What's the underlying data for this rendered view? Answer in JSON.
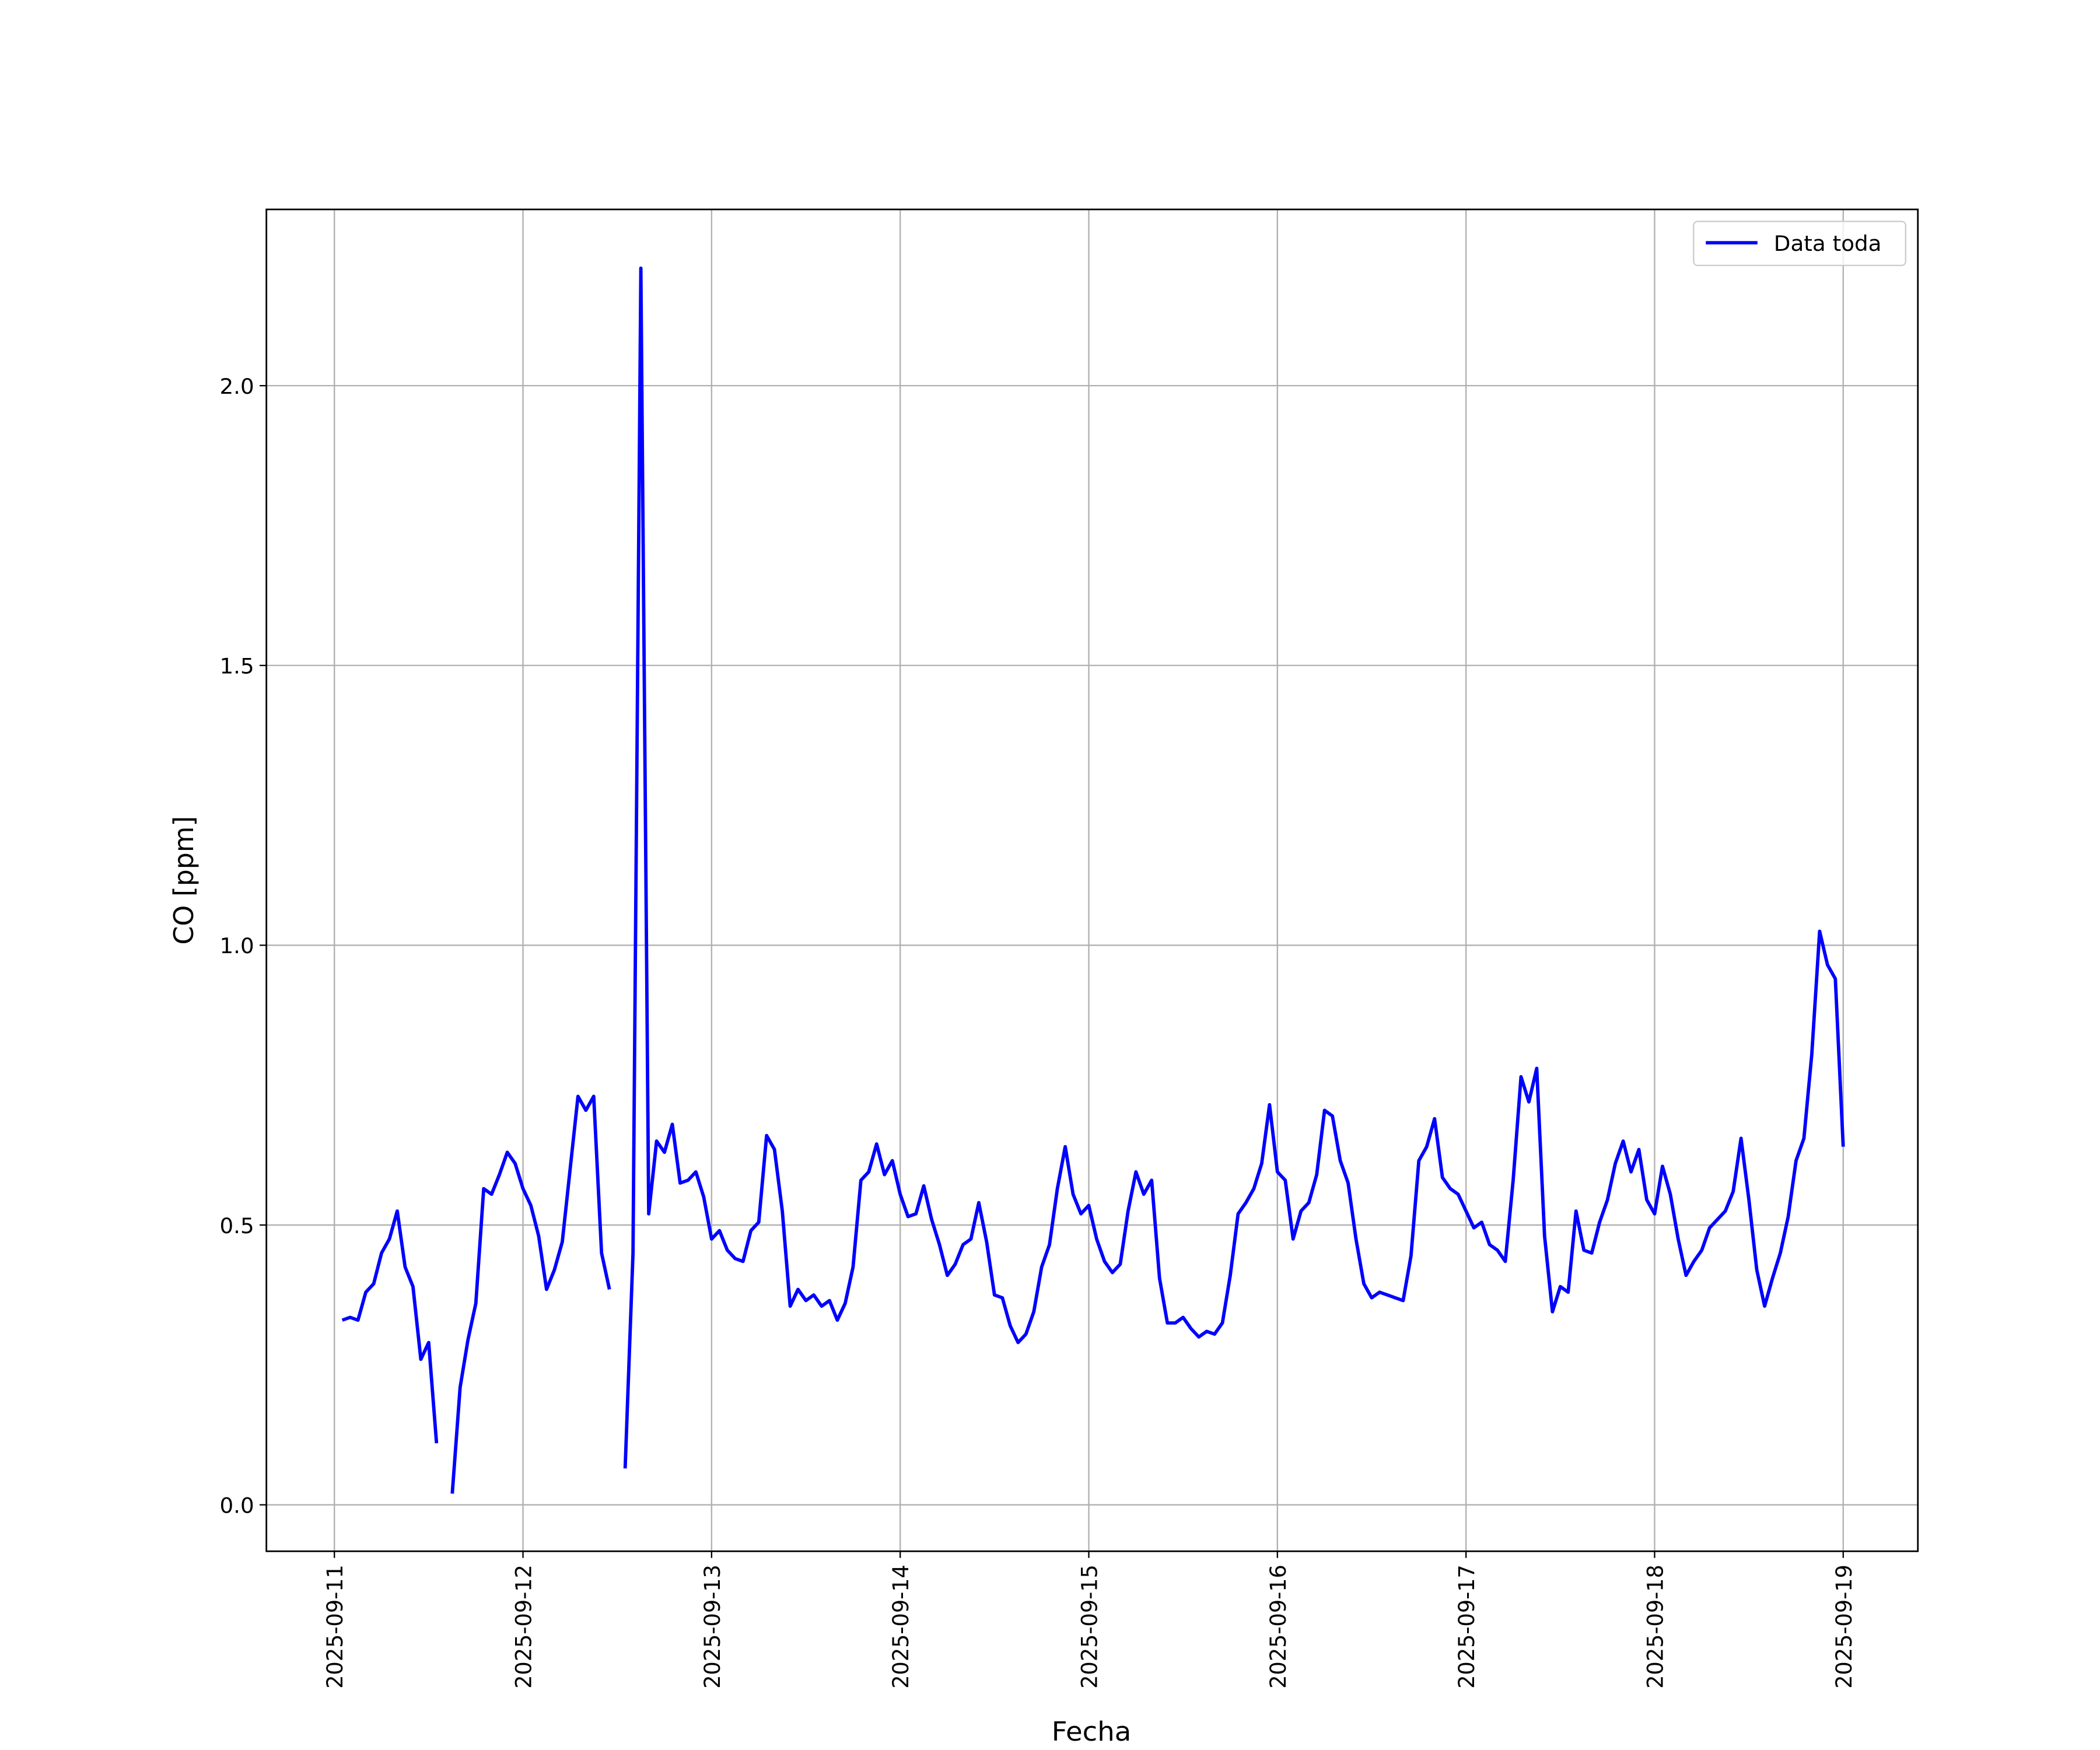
{
  "chart_data": {
    "type": "line",
    "x_label": "Fecha",
    "y_label": "CO [ppm]",
    "x": [
      "2025-09-11 01:00",
      "2025-09-11 02:00",
      "2025-09-11 03:00",
      "2025-09-11 04:00",
      "2025-09-11 05:00",
      "2025-09-11 06:00",
      "2025-09-11 07:00",
      "2025-09-11 08:00",
      "2025-09-11 09:00",
      "2025-09-11 10:00",
      "2025-09-11 11:00",
      "2025-09-11 12:00",
      "2025-09-11 13:00",
      "2025-09-11 14:00",
      "2025-09-11 15:00",
      "2025-09-11 16:00",
      "2025-09-11 17:00",
      "2025-09-11 18:00",
      "2025-09-11 19:00",
      "2025-09-11 20:00",
      "2025-09-11 21:00",
      "2025-09-11 22:00",
      "2025-09-11 23:00",
      "2025-09-12 00:00",
      "2025-09-12 01:00",
      "2025-09-12 02:00",
      "2025-09-12 03:00",
      "2025-09-12 04:00",
      "2025-09-12 05:00",
      "2025-09-12 06:00",
      "2025-09-12 07:00",
      "2025-09-12 08:00",
      "2025-09-12 09:00",
      "2025-09-12 10:00",
      "2025-09-12 11:00",
      "2025-09-12 12:00",
      "2025-09-12 13:00",
      "2025-09-12 14:00",
      "2025-09-12 15:00",
      "2025-09-12 16:00",
      "2025-09-12 17:00",
      "2025-09-12 18:00",
      "2025-09-12 19:00",
      "2025-09-12 20:00",
      "2025-09-12 21:00",
      "2025-09-12 22:00",
      "2025-09-12 23:00",
      "2025-09-13 00:00",
      "2025-09-13 01:00",
      "2025-09-13 02:00",
      "2025-09-13 03:00",
      "2025-09-13 04:00",
      "2025-09-13 05:00",
      "2025-09-13 06:00",
      "2025-09-13 07:00",
      "2025-09-13 08:00",
      "2025-09-13 09:00",
      "2025-09-13 10:00",
      "2025-09-13 11:00",
      "2025-09-13 12:00",
      "2025-09-13 13:00",
      "2025-09-13 14:00",
      "2025-09-13 15:00",
      "2025-09-13 16:00",
      "2025-09-13 17:00",
      "2025-09-13 18:00",
      "2025-09-13 19:00",
      "2025-09-13 20:00",
      "2025-09-13 21:00",
      "2025-09-13 22:00",
      "2025-09-13 23:00",
      "2025-09-14 00:00",
      "2025-09-14 01:00",
      "2025-09-14 02:00",
      "2025-09-14 03:00",
      "2025-09-14 04:00",
      "2025-09-14 05:00",
      "2025-09-14 06:00",
      "2025-09-14 07:00",
      "2025-09-14 08:00",
      "2025-09-14 09:00",
      "2025-09-14 10:00",
      "2025-09-14 11:00",
      "2025-09-14 12:00",
      "2025-09-14 13:00",
      "2025-09-14 14:00",
      "2025-09-14 15:00",
      "2025-09-14 16:00",
      "2025-09-14 17:00",
      "2025-09-14 18:00",
      "2025-09-14 19:00",
      "2025-09-14 20:00",
      "2025-09-14 21:00",
      "2025-09-14 22:00",
      "2025-09-14 23:00",
      "2025-09-15 00:00",
      "2025-09-15 01:00",
      "2025-09-15 02:00",
      "2025-09-15 03:00",
      "2025-09-15 04:00",
      "2025-09-15 05:00",
      "2025-09-15 06:00",
      "2025-09-15 07:00",
      "2025-09-15 08:00",
      "2025-09-15 09:00",
      "2025-09-15 10:00",
      "2025-09-15 11:00",
      "2025-09-15 12:00",
      "2025-09-15 13:00",
      "2025-09-15 14:00",
      "2025-09-15 15:00",
      "2025-09-15 16:00",
      "2025-09-15 17:00",
      "2025-09-15 18:00",
      "2025-09-15 19:00",
      "2025-09-15 20:00",
      "2025-09-15 21:00",
      "2025-09-15 22:00",
      "2025-09-15 23:00",
      "2025-09-16 00:00",
      "2025-09-16 01:00",
      "2025-09-16 02:00",
      "2025-09-16 03:00",
      "2025-09-16 04:00",
      "2025-09-16 05:00",
      "2025-09-16 06:00",
      "2025-09-16 07:00",
      "2025-09-16 08:00",
      "2025-09-16 09:00",
      "2025-09-16 10:00",
      "2025-09-16 11:00",
      "2025-09-16 12:00",
      "2025-09-16 13:00",
      "2025-09-16 14:00",
      "2025-09-16 15:00",
      "2025-09-16 16:00",
      "2025-09-16 17:00",
      "2025-09-16 18:00",
      "2025-09-16 19:00",
      "2025-09-16 20:00",
      "2025-09-16 21:00",
      "2025-09-16 22:00",
      "2025-09-16 23:00",
      "2025-09-17 00:00",
      "2025-09-17 01:00",
      "2025-09-17 02:00",
      "2025-09-17 03:00",
      "2025-09-17 04:00",
      "2025-09-17 05:00",
      "2025-09-17 06:00",
      "2025-09-17 07:00",
      "2025-09-17 08:00",
      "2025-09-17 09:00",
      "2025-09-17 10:00",
      "2025-09-17 11:00",
      "2025-09-17 12:00",
      "2025-09-17 13:00",
      "2025-09-17 14:00",
      "2025-09-17 15:00",
      "2025-09-17 16:00",
      "2025-09-17 17:00",
      "2025-09-17 18:00",
      "2025-09-17 19:00",
      "2025-09-17 20:00",
      "2025-09-17 21:00",
      "2025-09-17 22:00",
      "2025-09-17 23:00",
      "2025-09-18 00:00",
      "2025-09-18 01:00",
      "2025-09-18 02:00",
      "2025-09-18 03:00",
      "2025-09-18 04:00",
      "2025-09-18 05:00",
      "2025-09-18 06:00",
      "2025-09-18 07:00",
      "2025-09-18 08:00",
      "2025-09-18 09:00",
      "2025-09-18 10:00",
      "2025-09-18 11:00",
      "2025-09-18 12:00",
      "2025-09-18 13:00",
      "2025-09-18 14:00",
      "2025-09-18 15:00",
      "2025-09-18 16:00",
      "2025-09-18 17:00",
      "2025-09-18 18:00",
      "2025-09-18 19:00",
      "2025-09-18 20:00",
      "2025-09-18 21:00",
      "2025-09-18 22:00",
      "2025-09-18 23:00",
      "2025-09-19 00:00"
    ],
    "series": [
      {
        "name": "Data toda",
        "color": "#0000ff",
        "values": [
          0.33,
          0.335,
          0.33,
          0.38,
          0.395,
          0.45,
          0.475,
          0.525,
          0.425,
          0.39,
          0.26,
          0.29,
          0.11,
          null,
          0.02,
          0.21,
          0.295,
          0.36,
          0.565,
          0.555,
          0.59,
          0.63,
          0.61,
          0.565,
          0.535,
          0.48,
          0.385,
          0.42,
          0.47,
          0.6,
          0.73,
          0.705,
          0.73,
          0.45,
          0.385,
          null,
          0.065,
          0.45,
          2.21,
          0.52,
          0.65,
          0.63,
          0.68,
          0.575,
          0.58,
          0.595,
          0.55,
          0.475,
          0.49,
          0.455,
          0.44,
          0.435,
          0.49,
          0.505,
          0.66,
          0.635,
          0.525,
          0.355,
          0.385,
          0.365,
          0.375,
          0.355,
          0.365,
          0.33,
          0.36,
          0.425,
          0.58,
          0.595,
          0.645,
          0.59,
          0.615,
          0.555,
          0.515,
          0.52,
          0.57,
          0.51,
          0.465,
          0.41,
          0.43,
          0.465,
          0.475,
          0.54,
          0.47,
          0.375,
          0.37,
          0.32,
          0.29,
          0.305,
          0.345,
          0.425,
          0.465,
          0.565,
          0.64,
          0.555,
          0.52,
          0.535,
          0.475,
          0.435,
          0.415,
          0.43,
          0.525,
          0.595,
          0.555,
          0.58,
          0.405,
          0.325,
          0.325,
          0.335,
          0.315,
          0.3,
          0.31,
          0.305,
          0.325,
          0.41,
          0.52,
          0.54,
          0.565,
          0.61,
          0.715,
          0.595,
          0.58,
          0.475,
          0.525,
          0.54,
          0.59,
          0.705,
          0.695,
          0.615,
          0.575,
          0.475,
          0.395,
          0.37,
          0.38,
          0.375,
          0.37,
          0.365,
          0.445,
          0.615,
          0.64,
          0.69,
          0.585,
          0.565,
          0.555,
          0.525,
          0.495,
          0.505,
          0.465,
          0.455,
          0.435,
          0.58,
          0.765,
          0.72,
          0.78,
          0.48,
          0.345,
          0.39,
          0.38,
          0.525,
          0.455,
          0.45,
          0.505,
          0.545,
          0.61,
          0.65,
          0.595,
          0.635,
          0.545,
          0.52,
          0.605,
          0.555,
          0.475,
          0.41,
          0.435,
          0.455,
          0.495,
          0.51,
          0.525,
          0.56,
          0.655,
          0.545,
          0.42,
          0.355,
          0.405,
          0.45,
          0.515,
          0.615,
          0.655,
          0.805,
          1.025,
          0.965,
          0.94,
          0.64
        ]
      }
    ],
    "xlim": [
      "2025-09-10 15:21",
      "2025-09-19 09:30"
    ],
    "xticks": [
      "2025-09-11",
      "2025-09-12",
      "2025-09-13",
      "2025-09-14",
      "2025-09-15",
      "2025-09-16",
      "2025-09-17",
      "2025-09-18",
      "2025-09-19"
    ],
    "ylim": [
      -0.083,
      2.315
    ],
    "yticks": [
      {
        "value": 0,
        "label": "0.0"
      },
      0.5,
      {
        "value": 1,
        "label": "1.0"
      },
      1.5,
      {
        "value": 2,
        "label": "2.0"
      }
    ],
    "grid": true,
    "legend": "upper right"
  }
}
